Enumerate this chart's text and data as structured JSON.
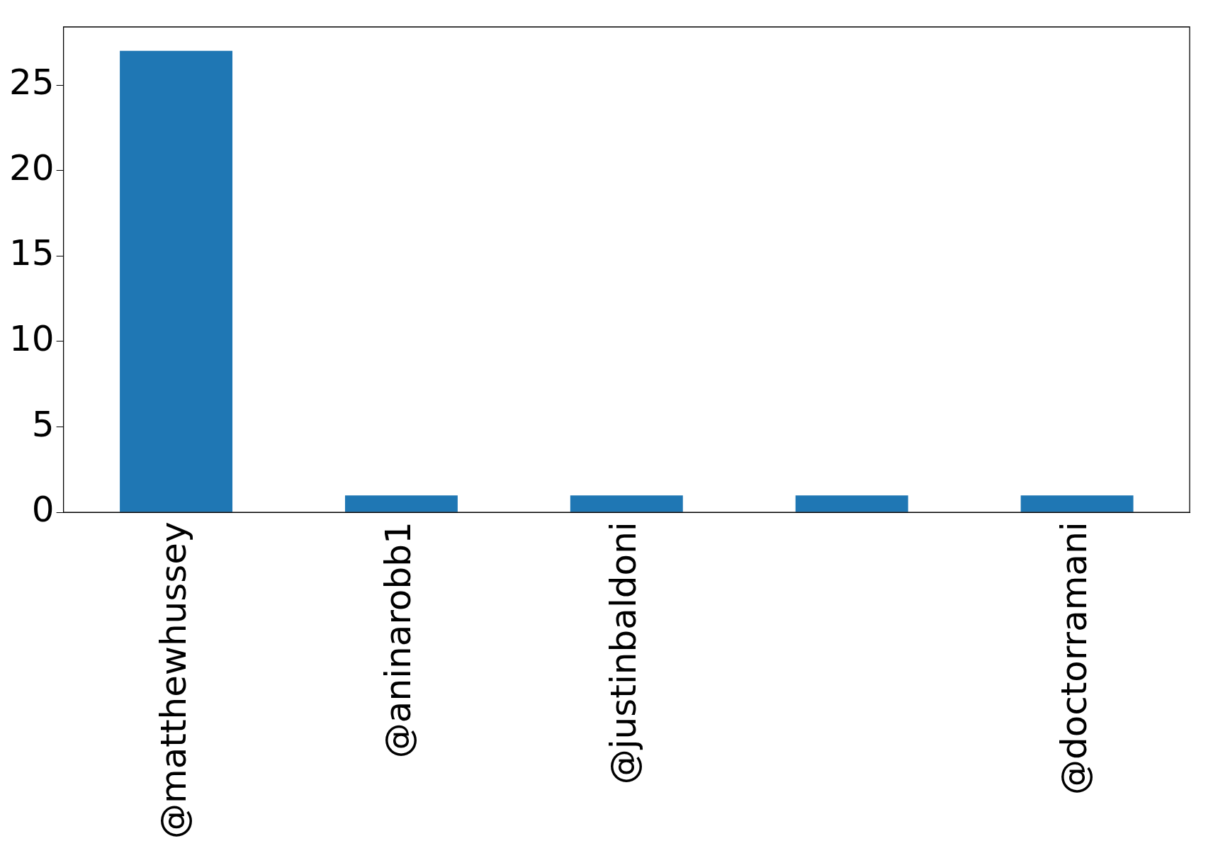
{
  "chart_data": {
    "type": "bar",
    "categories": [
      "@matthewhussey",
      "@aninarobb1",
      "@justinbaldoni",
      null,
      "@doctorramani"
    ],
    "values": [
      27,
      1,
      1,
      1,
      1
    ],
    "color": "#1f77b4",
    "ylim": [
      0,
      28.4
    ],
    "yticks": [
      0,
      5,
      10,
      15,
      20,
      25
    ],
    "grid": false,
    "legend": false
  }
}
